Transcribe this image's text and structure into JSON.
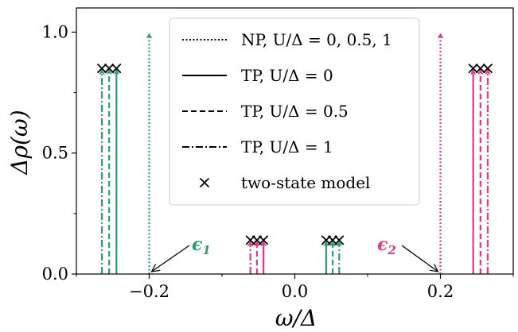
{
  "chart_data": {
    "type": "line",
    "xlabel": "ω/Δ",
    "ylabel": "Δρ(ω)",
    "xlim": [
      -0.3,
      0.3
    ],
    "ylim": [
      0.0,
      1.1
    ],
    "x_ticks": [
      -0.2,
      0.0,
      0.2
    ],
    "x_tick_labels": [
      "−0.2",
      "0.0",
      "0.2"
    ],
    "y_ticks": [
      0.0,
      0.5,
      1.0
    ],
    "y_tick_labels": [
      "0.0",
      "0.5",
      "1.0"
    ],
    "grid": false,
    "colors": {
      "green": "#2a9d78",
      "magenta": "#e0368c"
    },
    "legend": {
      "placement": "upper-center",
      "entries": [
        {
          "label": "NP, U/Δ = 0, 0.5, 1",
          "style": "dotted"
        },
        {
          "label": "TP, U/Δ = 0",
          "style": "solid"
        },
        {
          "label": "TP, U/Δ = 0.5",
          "style": "dashed"
        },
        {
          "label": "TP, U/Δ = 1",
          "style": "dashdot"
        },
        {
          "label": "two-state model",
          "style": "marker-x"
        }
      ]
    },
    "series": [
      {
        "style": "dotted",
        "spikes": [
          {
            "x": -0.2,
            "h": 1.0,
            "color": "green"
          },
          {
            "x": 0.2,
            "h": 1.0,
            "color": "magenta"
          }
        ]
      },
      {
        "style": "solid",
        "spikes": [
          {
            "x": -0.245,
            "h": 0.85,
            "color": "green"
          },
          {
            "x": -0.043,
            "h": 0.14,
            "color": "magenta"
          },
          {
            "x": 0.043,
            "h": 0.14,
            "color": "green"
          },
          {
            "x": 0.245,
            "h": 0.85,
            "color": "magenta"
          }
        ]
      },
      {
        "style": "dashed",
        "spikes": [
          {
            "x": -0.255,
            "h": 0.85,
            "color": "green"
          },
          {
            "x": -0.052,
            "h": 0.14,
            "color": "magenta"
          },
          {
            "x": 0.052,
            "h": 0.14,
            "color": "green"
          },
          {
            "x": 0.255,
            "h": 0.85,
            "color": "magenta"
          }
        ]
      },
      {
        "style": "dashdot",
        "spikes": [
          {
            "x": -0.265,
            "h": 0.85,
            "color": "green"
          },
          {
            "x": -0.061,
            "h": 0.14,
            "color": "magenta"
          },
          {
            "x": 0.061,
            "h": 0.14,
            "color": "green"
          },
          {
            "x": 0.265,
            "h": 0.85,
            "color": "magenta"
          }
        ]
      },
      {
        "style": "marker-x",
        "points": [
          {
            "x": -0.265,
            "y": 0.85
          },
          {
            "x": -0.255,
            "y": 0.85
          },
          {
            "x": -0.245,
            "y": 0.85
          },
          {
            "x": -0.061,
            "y": 0.14
          },
          {
            "x": -0.052,
            "y": 0.14
          },
          {
            "x": -0.043,
            "y": 0.14
          },
          {
            "x": 0.043,
            "y": 0.14
          },
          {
            "x": 0.052,
            "y": 0.14
          },
          {
            "x": 0.061,
            "y": 0.14
          },
          {
            "x": 0.245,
            "y": 0.85
          },
          {
            "x": 0.255,
            "y": 0.85
          },
          {
            "x": 0.265,
            "y": 0.85
          }
        ]
      }
    ],
    "annotations": [
      {
        "label": "ϵ",
        "sub": "1",
        "color": "green",
        "points_to": {
          "x": -0.2,
          "y": 0.0
        }
      },
      {
        "label": "ϵ",
        "sub": "2",
        "color": "magenta",
        "points_to": {
          "x": 0.2,
          "y": 0.0
        }
      }
    ]
  }
}
